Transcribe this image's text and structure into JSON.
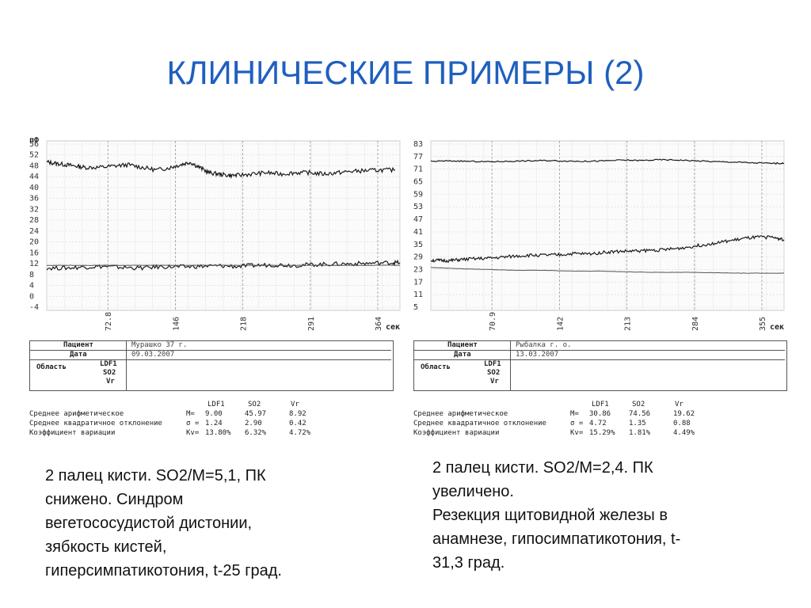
{
  "slide": {
    "title": "КЛИНИЧЕСКИЕ ПРИМЕРЫ (2)"
  },
  "chart_data": [
    {
      "type": "line",
      "y_unit_label": "пФ",
      "x_unit_label": "сек",
      "yticks": [
        "56",
        "52",
        "48",
        "44",
        "40",
        "36",
        "32",
        "28",
        "24",
        "20",
        "16",
        "12",
        "8",
        "4",
        "0",
        "-4"
      ],
      "xticks": [
        "72.8",
        "146",
        "218",
        "291",
        "364"
      ],
      "ylim": [
        -6,
        58
      ],
      "xlim": [
        0,
        370
      ],
      "series": [
        {
          "x": [
            0,
            10,
            20,
            30,
            40,
            55,
            70,
            85,
            100,
            115,
            130,
            140,
            150,
            160,
            170,
            180,
            190,
            200,
            215,
            230,
            245,
            260,
            275,
            290,
            305,
            320,
            335,
            350,
            365
          ],
          "y": [
            50,
            49.5,
            49,
            48.5,
            48,
            48,
            48.5,
            49,
            48,
            47,
            48,
            49,
            50,
            48,
            46,
            45.5,
            45,
            45,
            45.5,
            46,
            45.5,
            46,
            46,
            45.5,
            46,
            46.5,
            46.8,
            47,
            47
          ]
        },
        {
          "x": [
            0,
            20,
            40,
            60,
            80,
            100,
            120,
            140,
            160,
            180,
            200,
            220,
            240,
            260,
            280,
            300,
            320,
            340,
            360,
            370
          ],
          "y": [
            10,
            10,
            10.4,
            10.6,
            10.2,
            10,
            10.5,
            10.4,
            10.6,
            10.8,
            10.6,
            11,
            11.2,
            11,
            11.3,
            11.5,
            11.6,
            11.8,
            12,
            12
          ]
        },
        {
          "x": [
            0,
            30,
            60,
            90,
            120,
            150,
            180,
            210,
            240,
            270,
            300,
            330,
            360,
            370
          ],
          "y": [
            11,
            11,
            11,
            11,
            11,
            11,
            11,
            11,
            11,
            11,
            11,
            11,
            11,
            11
          ]
        }
      ]
    },
    {
      "type": "line",
      "y_unit_label": "",
      "x_unit_label": "сек",
      "yticks": [
        "83",
        "77",
        "71",
        "65",
        "59",
        "53",
        "47",
        "41",
        "35",
        "29",
        "23",
        "17",
        "11",
        "5"
      ],
      "xticks": [
        "70.9",
        "142",
        "213",
        "284",
        "355"
      ],
      "ylim": [
        2,
        85
      ],
      "xlim": [
        0,
        370
      ],
      "series": [
        {
          "x": [
            0,
            20,
            40,
            60,
            80,
            100,
            120,
            140,
            160,
            180,
            200,
            220,
            240,
            260,
            280,
            300,
            320,
            340,
            360,
            370
          ],
          "y": [
            75,
            75.2,
            75,
            74.8,
            75,
            75.2,
            75.4,
            75.2,
            75,
            75.2,
            75.6,
            75.4,
            75.8,
            75.6,
            75.2,
            74.8,
            74.6,
            74.2,
            74,
            74
          ]
        },
        {
          "x": [
            0,
            10,
            20,
            30,
            45,
            60,
            75,
            90,
            105,
            120,
            135,
            150,
            165,
            180,
            195,
            210,
            225,
            240,
            255,
            270,
            285,
            300,
            315,
            330,
            345,
            360,
            370
          ],
          "y": [
            26.5,
            26.4,
            26.3,
            26.8,
            27.2,
            27.5,
            28,
            28.6,
            29,
            29,
            29.2,
            29.8,
            29.6,
            30.4,
            30.8,
            31,
            31.3,
            31.6,
            32.1,
            33,
            34.1,
            35.1,
            36.2,
            37.3,
            37.9,
            37.7,
            36.6
          ]
        },
        {
          "x": [
            0,
            30,
            60,
            90,
            120,
            150,
            180,
            210,
            240,
            270,
            300,
            330,
            360,
            370
          ],
          "y": [
            23,
            22.4,
            22,
            21.6,
            21.6,
            21.2,
            21.2,
            20.8,
            20.6,
            20.6,
            20.4,
            20.2,
            20.2,
            20.2
          ]
        }
      ]
    }
  ],
  "left_panel": {
    "patient_label": "Пациент",
    "patient_value": "Мурашко 37 г.",
    "date_label": "Дата",
    "date_value": "09.03.2007",
    "area_label": "Область",
    "ch1": "LDF1",
    "ch2": "SO2",
    "ch3": "Vr",
    "stats_header": [
      "LDF1",
      "SO2",
      "Vr"
    ],
    "stats_rows": [
      {
        "label": "Среднее арифметическое",
        "prefix": "M=",
        "v1": "9.00",
        "v2": "45.97",
        "v3": "8.92"
      },
      {
        "label": "Среднее квадратичное отклонение",
        "prefix": "σ =",
        "v1": "1.24",
        "v2": "2.90",
        "v3": "0.42"
      },
      {
        "label": "Коэффициент вариации",
        "prefix": "Kv=",
        "v1": "13.80%",
        "v2": "6.32%",
        "v3": "4.72%"
      }
    ],
    "caption": "2 палец кисти. SO2/M=5,1, ПК\nснижено. Синдром\nвегетососудистой дистонии,\nзябкость кистей,\nгиперсимпатикотония,  t-25 град."
  },
  "right_panel": {
    "patient_label": "Пациент",
    "patient_value": "Рыбалка г. о.",
    "date_label": "Дата",
    "date_value": "13.03.2007",
    "area_label": "Область",
    "ch1": "LDF1",
    "ch2": "SO2",
    "ch3": "Vr",
    "stats_header": [
      "LDF1",
      "SO2",
      "Vr"
    ],
    "stats_rows": [
      {
        "label": "Среднее арифметическое",
        "prefix": "M=",
        "v1": "30.86",
        "v2": "74.56",
        "v3": "19.62"
      },
      {
        "label": "Среднее квадратичное отклонение",
        "prefix": "σ =",
        "v1": "4.72",
        "v2": "1.35",
        "v3": "0.88"
      },
      {
        "label": "Коэффициент вариации",
        "prefix": "Kv=",
        "v1": "15.29%",
        "v2": "1.81%",
        "v3": "4.49%"
      }
    ],
    "caption": "2 палец кисти. SO2/M=2,4. ПК\nувеличено.\nРезекция щитовидной железы в\nанамнезе, гипосимпатикотония, t-\n31,3 град."
  }
}
